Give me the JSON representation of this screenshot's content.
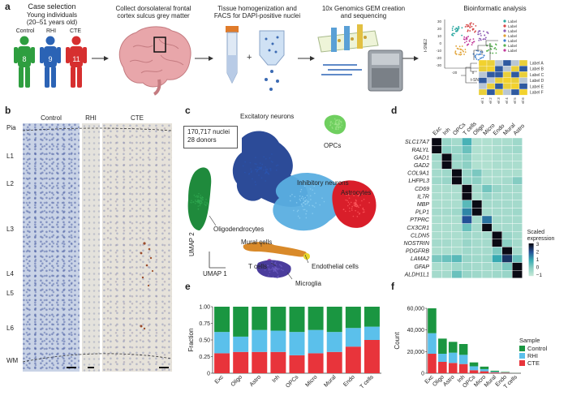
{
  "panel_letters": {
    "a": "a",
    "b": "b",
    "c": "c",
    "d": "d",
    "e": "e",
    "f": "f"
  },
  "panel_a": {
    "case_selection": "Case selection",
    "young_individuals": "Young individuals",
    "age_range": "(20–51 years old)",
    "groups": [
      {
        "label": "Control",
        "count": "8",
        "color": "#2e9e3f"
      },
      {
        "label": "RHI",
        "count": "9",
        "color": "#2b63b5"
      },
      {
        "label": "CTE",
        "count": "11",
        "color": "#d62f2f"
      }
    ],
    "step2_line1": "Collect dorsolateral frontal",
    "step2_line2": "cortex sulcus grey matter",
    "step3_line1": "Tissue homogenization and",
    "step3_line2": "FACS for DAPI-positive nuclei",
    "step4_line1": "10x Genomics GEM creation",
    "step4_line2": "and sequencing",
    "step5": "Bioinformatic analysis",
    "tsne": {
      "xlabel": "t-SNE1",
      "ylabel": "t-SNE2",
      "yticks": [
        "30",
        "20",
        "10",
        "0",
        "-10",
        "-20",
        "-30"
      ],
      "xticks": [
        "-20",
        "0",
        "20"
      ],
      "legend": [
        "Label",
        "Label",
        "Label",
        "Label",
        "Label",
        "Label",
        "Label"
      ]
    },
    "heatmap_rows": [
      "Label A",
      "Label B",
      "Label C",
      "Label D",
      "Label E",
      "Label F"
    ],
    "heatmap_cols": [
      "Label 1",
      "Label 2",
      "Label 3",
      "Label 4",
      "Label 5",
      "Label 6"
    ]
  },
  "panel_b": {
    "columns": [
      "Control",
      "RHI",
      "CTE"
    ],
    "layers": [
      "Pia",
      "L1",
      "L2",
      "L3",
      "L4",
      "L5",
      "L6",
      "WM"
    ]
  },
  "panel_c": {
    "info_line1": "170,717 nuclei",
    "info_line2": "28 donors",
    "labels": {
      "excitatory": "Excitatory neurons",
      "opcs": "OPCs",
      "inhibitory": "Inhibitory neurons",
      "astrocytes": "Astrocytes",
      "oligodendrocytes": "Oligodendrocytes",
      "mural": "Mural cells",
      "tcells": "T cells",
      "endothelial": "Endothelial cells",
      "microglia": "Microglia"
    },
    "axis_y": "UMAP 2",
    "axis_x": "UMAP 1"
  },
  "panel_d": {
    "columns": [
      "Exc",
      "Inh",
      "OPCs",
      "T cells",
      "Oligo",
      "Micro",
      "Endo",
      "Mural",
      "Astro"
    ],
    "genes": [
      "SLC17A7",
      "RALYL",
      "GAD1",
      "GAD2",
      "COL9A1",
      "LHFPL3",
      "CD69",
      "IL7R",
      "MBP",
      "PLP1",
      "PTPRC",
      "CX3CR1",
      "CLDN5",
      "NOSTRIN",
      "PDGFRB",
      "LAMA2",
      "GFAP",
      "ALDH1L1"
    ],
    "legend_title_1": "Scaled",
    "legend_title_2": "expression",
    "legend_ticks": [
      "3",
      "2",
      "1",
      "0",
      "−1"
    ],
    "values": [
      [
        3,
        -0.2,
        -0.4,
        0.8,
        -0.6,
        -0.6,
        -0.5,
        -0.5,
        -0.3
      ],
      [
        3,
        0.0,
        -0.2,
        0.4,
        -0.6,
        -0.6,
        -0.5,
        -0.4,
        -0.3
      ],
      [
        -0.3,
        3,
        -0.2,
        0.0,
        -0.6,
        -0.6,
        -0.5,
        -0.5,
        -0.5
      ],
      [
        -0.4,
        3,
        -0.3,
        0.0,
        -0.6,
        -0.6,
        -0.5,
        -0.5,
        -0.5
      ],
      [
        -0.4,
        -0.3,
        3,
        -0.2,
        0.2,
        -0.5,
        -0.5,
        -0.5,
        -0.5
      ],
      [
        -0.3,
        -0.2,
        3,
        -0.1,
        0.0,
        -0.5,
        -0.5,
        -0.4,
        0.1
      ],
      [
        -0.5,
        -0.5,
        -0.5,
        3,
        -0.4,
        0.3,
        -0.2,
        -0.4,
        -0.4
      ],
      [
        -0.5,
        -0.5,
        -0.5,
        3,
        -0.5,
        -0.2,
        -0.4,
        -0.4,
        -0.4
      ],
      [
        -0.5,
        -0.5,
        -0.5,
        0.6,
        3,
        -0.4,
        -0.4,
        -0.4,
        -0.4
      ],
      [
        -0.4,
        -0.4,
        -0.3,
        1.4,
        3,
        -0.4,
        -0.4,
        -0.4,
        -0.3
      ],
      [
        -0.5,
        -0.5,
        -0.5,
        2.0,
        -0.4,
        1.6,
        -0.4,
        -0.4,
        -0.4
      ],
      [
        -0.5,
        -0.5,
        -0.5,
        0.4,
        -0.4,
        3,
        -0.4,
        -0.4,
        -0.4
      ],
      [
        -0.5,
        -0.5,
        -0.5,
        -0.3,
        -0.4,
        -0.4,
        3,
        -0.2,
        -0.4
      ],
      [
        -0.4,
        -0.4,
        -0.5,
        -0.2,
        -0.4,
        -0.4,
        3,
        0.0,
        -0.4
      ],
      [
        -0.5,
        -0.5,
        -0.5,
        -0.3,
        -0.4,
        -0.4,
        0.2,
        3,
        -0.4
      ],
      [
        0.2,
        0.4,
        0.6,
        -0.2,
        -0.3,
        -0.3,
        1.0,
        2.4,
        0.4
      ],
      [
        -0.5,
        -0.5,
        -0.3,
        -0.3,
        -0.4,
        -0.4,
        -0.3,
        0.2,
        3
      ],
      [
        -0.4,
        -0.4,
        0.4,
        -0.2,
        -0.3,
        -0.4,
        -0.3,
        -0.2,
        3
      ]
    ]
  },
  "chart_data": [
    {
      "type": "bar",
      "stacked": true,
      "categories": [
        "Exc",
        "Oligo",
        "Astro",
        "Inh",
        "OPCs",
        "Micro",
        "Mural",
        "Endo",
        "T cells"
      ],
      "series": [
        {
          "name": "CTE",
          "color": "#e8343b",
          "values": [
            0.3,
            0.32,
            0.32,
            0.32,
            0.27,
            0.3,
            0.32,
            0.4,
            0.5
          ]
        },
        {
          "name": "RHI",
          "color": "#5bc0eb",
          "values": [
            0.32,
            0.23,
            0.33,
            0.32,
            0.35,
            0.35,
            0.3,
            0.28,
            0.2
          ]
        },
        {
          "name": "Control",
          "color": "#1a9641",
          "values": [
            0.38,
            0.45,
            0.35,
            0.36,
            0.38,
            0.35,
            0.38,
            0.32,
            0.3
          ]
        }
      ],
      "ylabel": "Fraction",
      "yticks": [
        "0",
        "0.25",
        "0.50",
        "0.75",
        "1.00"
      ],
      "ylim": [
        0,
        1
      ]
    },
    {
      "type": "bar",
      "stacked": true,
      "categories": [
        "Exc",
        "Oligo",
        "Astro",
        "Inh",
        "OPCs",
        "Micro",
        "Mural",
        "Endo",
        "T cells"
      ],
      "series": [
        {
          "name": "CTE",
          "color": "#e8343b",
          "values": [
            18000,
            10500,
            9500,
            8500,
            2800,
            1800,
            700,
            500,
            100
          ]
        },
        {
          "name": "RHI",
          "color": "#5bc0eb",
          "values": [
            19000,
            7500,
            9500,
            8500,
            3600,
            2000,
            700,
            400,
            80
          ]
        },
        {
          "name": "Control",
          "color": "#1a9641",
          "values": [
            23000,
            14000,
            10000,
            10000,
            3600,
            2300,
            900,
            400,
            100
          ]
        }
      ],
      "ylabel": "Count",
      "yticks": [
        "0",
        "20,000",
        "40,000",
        "60,000"
      ],
      "ylim": [
        0,
        60000
      ],
      "legend_title": "Sample",
      "legend": [
        "Control",
        "RHI",
        "CTE"
      ]
    }
  ]
}
